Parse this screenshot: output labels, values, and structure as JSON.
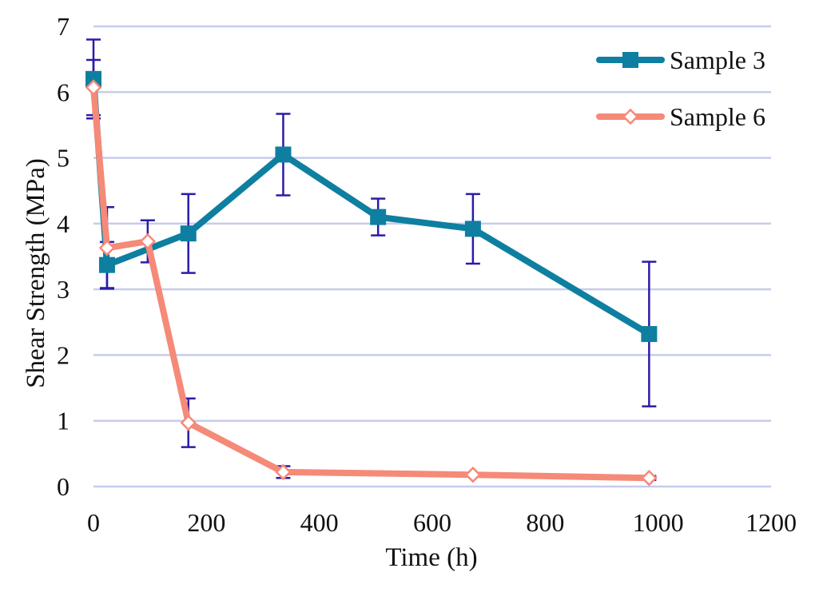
{
  "chart_data": {
    "type": "line",
    "title": "",
    "xlabel": "Time (h)",
    "ylabel": "Shear Strength (MPa)",
    "xlim": [
      0,
      1200
    ],
    "ylim": [
      0,
      7
    ],
    "x_ticks": [
      0,
      200,
      400,
      600,
      800,
      1000,
      1200
    ],
    "y_ticks": [
      0,
      1,
      2,
      3,
      4,
      5,
      6,
      7
    ],
    "x_tick_labels": [
      "0",
      "200",
      "400",
      "600",
      "800",
      "1000",
      "1200"
    ],
    "y_tick_labels": [
      "0",
      "1",
      "2",
      "3",
      "4",
      "5",
      "6",
      "7"
    ],
    "grid": "horizontal",
    "legend_position": "top-right",
    "series": [
      {
        "name": "Sample 3",
        "color": "#0E7FA0",
        "marker": "square",
        "x": [
          0,
          24,
          168,
          336,
          504,
          672,
          984
        ],
        "y": [
          6.2,
          3.37,
          3.85,
          5.05,
          4.1,
          3.92,
          2.32
        ],
        "error": [
          0.6,
          0.35,
          0.6,
          0.62,
          0.28,
          0.53,
          1.1
        ]
      },
      {
        "name": "Sample 6",
        "color": "#F58A78",
        "marker": "diamond-open",
        "x": [
          0,
          24,
          96,
          168,
          336,
          672,
          984
        ],
        "y": [
          6.07,
          3.63,
          3.73,
          0.97,
          0.22,
          0.18,
          0.13
        ],
        "error": [
          0.42,
          0.62,
          0.32,
          0.37,
          0.09,
          0.03,
          0.03
        ]
      }
    ],
    "error_bar_color": "#2B1BA8"
  }
}
